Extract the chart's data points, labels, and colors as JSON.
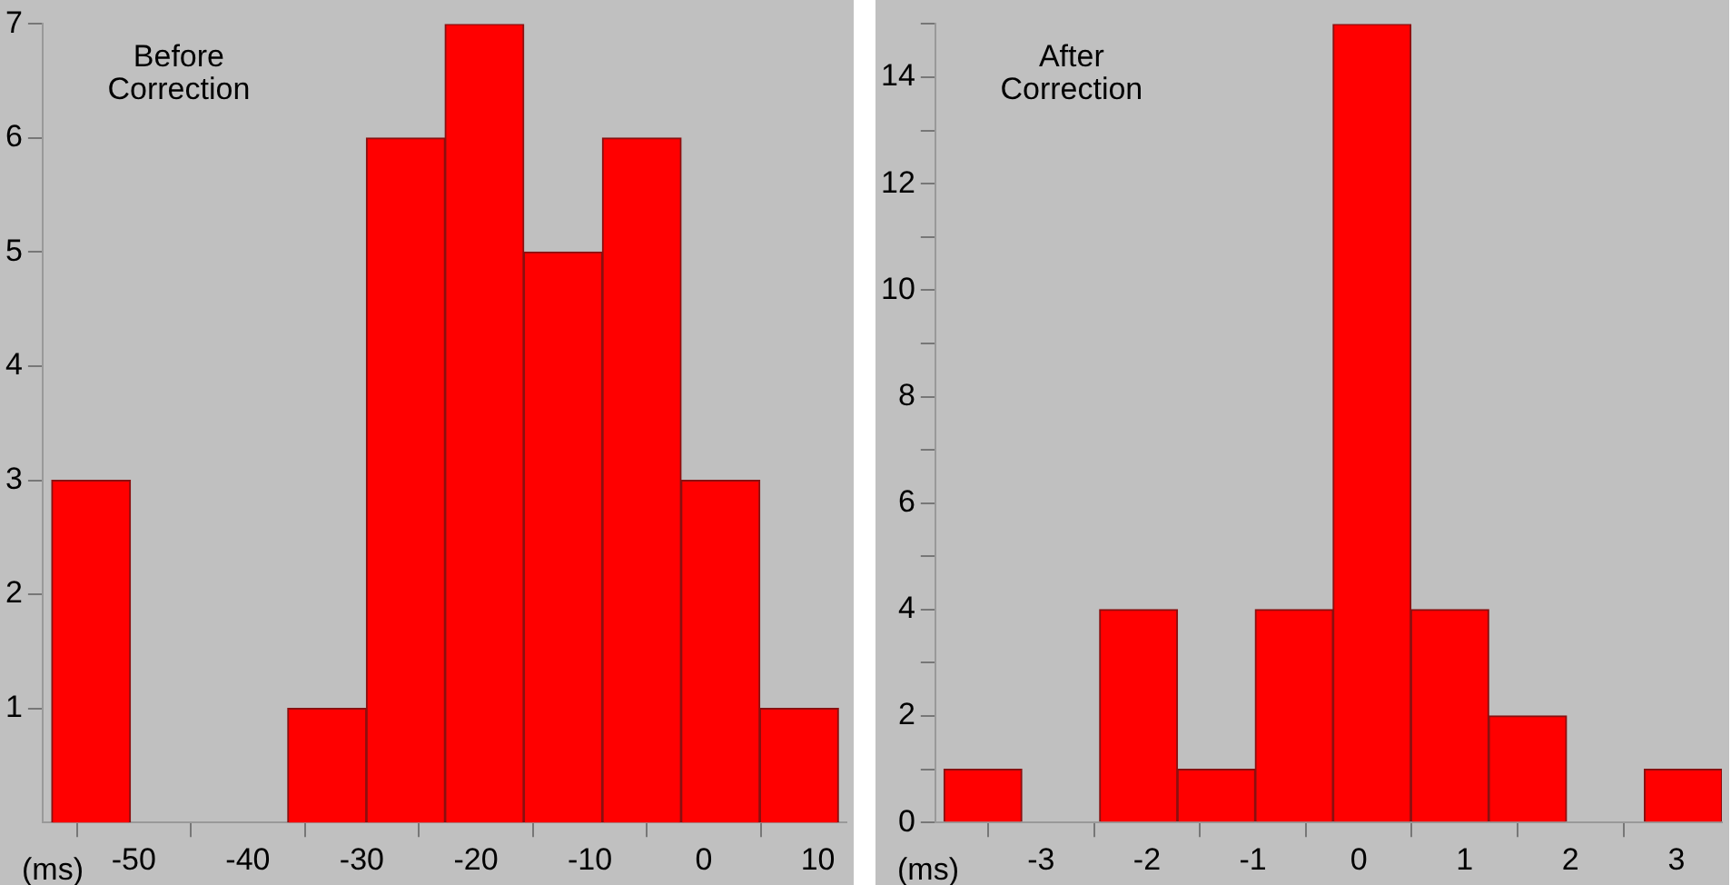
{
  "chart_data": [
    {
      "type": "histogram",
      "title": "Before\nCorrection",
      "xlabel": "(ms)",
      "bins": [
        -57.2,
        -50.3,
        -43.4,
        -36.5,
        -29.6,
        -22.7,
        -15.8,
        -8.9,
        -2,
        4.9,
        11.8
      ],
      "values": [
        3,
        0,
        0,
        1,
        6,
        7,
        5,
        6,
        3,
        1
      ],
      "color": "#ff0000",
      "xlim": [
        -58,
        12.5
      ],
      "xticks": [
        -50,
        -40,
        -30,
        -20,
        -10,
        0,
        10
      ],
      "ylim": [
        0,
        7
      ],
      "yticks": [
        1,
        2,
        3,
        4,
        5,
        6,
        7
      ]
    },
    {
      "type": "histogram",
      "title": "After\nCorrection",
      "xlabel": "(ms)",
      "bins": [
        -3.92,
        -3.18,
        -2.45,
        -1.71,
        -0.98,
        -0.24,
        0.49,
        1.23,
        1.96,
        2.7,
        3.43
      ],
      "values": [
        1,
        0,
        4,
        1,
        4,
        15,
        4,
        2,
        0,
        1
      ],
      "color": "#ff0000",
      "xlim": [
        -4,
        3.43
      ],
      "xticks": [
        -3,
        -2,
        -1,
        0,
        1,
        2,
        3
      ],
      "ylim": [
        0,
        15
      ],
      "yticks": [
        0,
        {
          "value": 1,
          "label": null
        },
        2,
        {
          "value": 3,
          "label": null
        },
        4,
        {
          "value": 5,
          "label": null
        },
        6,
        {
          "value": 7,
          "label": null
        },
        8,
        {
          "value": 9,
          "label": null
        },
        10,
        {
          "value": 11,
          "label": null
        },
        12,
        {
          "value": 13,
          "label": null
        },
        14,
        {
          "value": 15,
          "label": null
        }
      ]
    }
  ]
}
